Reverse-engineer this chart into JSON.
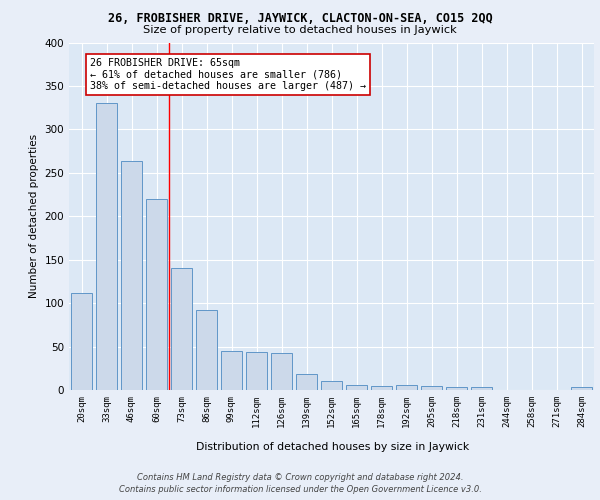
{
  "title1": "26, FROBISHER DRIVE, JAYWICK, CLACTON-ON-SEA, CO15 2QQ",
  "title2": "Size of property relative to detached houses in Jaywick",
  "xlabel": "Distribution of detached houses by size in Jaywick",
  "ylabel": "Number of detached properties",
  "categories": [
    "20sqm",
    "33sqm",
    "46sqm",
    "60sqm",
    "73sqm",
    "86sqm",
    "99sqm",
    "112sqm",
    "126sqm",
    "139sqm",
    "152sqm",
    "165sqm",
    "178sqm",
    "192sqm",
    "205sqm",
    "218sqm",
    "231sqm",
    "244sqm",
    "258sqm",
    "271sqm",
    "284sqm"
  ],
  "values": [
    112,
    330,
    264,
    220,
    140,
    92,
    45,
    44,
    43,
    18,
    10,
    6,
    5,
    6,
    5,
    3,
    4,
    0,
    0,
    0,
    4
  ],
  "bar_color": "#ccd9ea",
  "bar_edge_color": "#6096c8",
  "red_line_index": 3.5,
  "annotation_text": "26 FROBISHER DRIVE: 65sqm\n← 61% of detached houses are smaller (786)\n38% of semi-detached houses are larger (487) →",
  "annotation_box_color": "#ffffff",
  "annotation_box_edge": "#cc0000",
  "footer1": "Contains HM Land Registry data © Crown copyright and database right 2024.",
  "footer2": "Contains public sector information licensed under the Open Government Licence v3.0.",
  "ylim": [
    0,
    400
  ],
  "background_color": "#dce8f5",
  "fig_background": "#e8eef8",
  "grid_color": "#ffffff",
  "yticks": [
    0,
    50,
    100,
    150,
    200,
    250,
    300,
    350,
    400
  ]
}
